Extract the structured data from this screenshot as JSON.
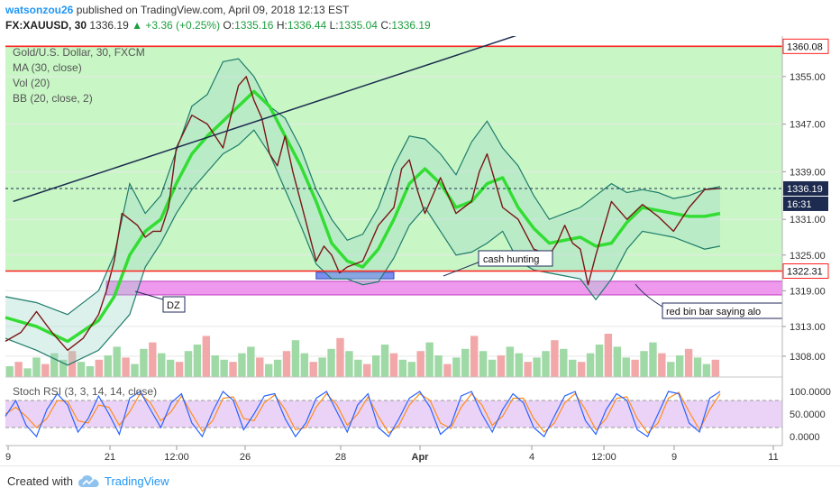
{
  "header": {
    "author": "watsonzou26",
    "published_text": "published on TradingView.com, April 09, 2018 12:13 EST",
    "symbol": "FX:XAUUSD, 30",
    "last": "1336.19",
    "change": "+3.36 (+0.25%)",
    "o_label": "O:",
    "o_value": "1335.16",
    "h_label": "H:",
    "h_value": "1336.44",
    "l_label": "L:",
    "l_value": "1335.04",
    "c_label": "C:",
    "c_value": "1336.19"
  },
  "legend": {
    "title": "Gold/U.S. Dollar, 30, FXCM",
    "ma": "MA (30, close)",
    "vol": "Vol (20)",
    "bb": "BB (20, close, 2)",
    "stoch": "Stoch RSI (3, 3, 14, 14, close)"
  },
  "annotations": {
    "cash_hunting": "cash hunting",
    "dz": "DZ",
    "red_bin": "red bin bar saying alo"
  },
  "price_tags": {
    "resistance": "1360.08",
    "current": "1336.19",
    "countdown": "16:31",
    "support": "1322.31"
  },
  "footer": {
    "created_with": "Created with",
    "brand": "TradingView"
  },
  "colors": {
    "green_zone": "#c8f7c5",
    "demand_zone": "#ee99ee",
    "cash_box": "#7b8ef0",
    "level_line": "#ff2020",
    "ma": "#33dd33",
    "bb": "#1e7b6b",
    "price": "#7a1616",
    "stoch_k": "#2962ff",
    "stoch_d": "#ff8c1a",
    "stoch_band": "#e6c8f5",
    "currency_up": "#1c9e3e"
  },
  "chart_data": {
    "type": "candlestick",
    "title": "Gold/U.S. Dollar, 30, FXCM",
    "y_axis": {
      "ticks": [
        "1355.00",
        "1347.00",
        "1339.00",
        "1331.00",
        "1325.00",
        "1319.00",
        "1313.00",
        "1308.00"
      ],
      "tick_values": [
        1355,
        1347,
        1339,
        1331,
        1325,
        1319,
        1313,
        1308
      ],
      "range": [
        1304.5,
        1361.8
      ]
    },
    "x_axis": {
      "ticks": [
        "9",
        "21",
        "12:00",
        "26",
        "28",
        "Apr",
        "4",
        "12:00",
        "9",
        "11"
      ]
    },
    "horizontal_levels": [
      {
        "value": 1360.08,
        "color": "red"
      },
      {
        "value": 1322.31,
        "color": "red"
      },
      {
        "value": 1336.19,
        "color": "navy",
        "style": "dashed"
      }
    ],
    "trendline": {
      "from": [
        1,
        1334.0
      ],
      "to": [
        66,
        1362.0
      ]
    },
    "demand_zone": {
      "from_x": 13,
      "to_x": 100,
      "top": 1320.6,
      "bottom": 1318.3
    },
    "cash_box": {
      "from_x": 40,
      "to_x": 50,
      "top": 1322.1,
      "bottom": 1321.0
    },
    "price_path": {
      "x": [
        0,
        2,
        4,
        6,
        8,
        10,
        12,
        13,
        14,
        15,
        16,
        17,
        18,
        19,
        20,
        21,
        22,
        24,
        26,
        28,
        30,
        31,
        32,
        33,
        34,
        35,
        36,
        37,
        38,
        39,
        40,
        41,
        42,
        43,
        44,
        46,
        48,
        50,
        51,
        52,
        53,
        54,
        56,
        58,
        60,
        61,
        62,
        64,
        66,
        68,
        70,
        71,
        72,
        73,
        74,
        75,
        76,
        78,
        80,
        82,
        84,
        86,
        88,
        90,
        92
      ],
      "close": [
        1310.5,
        1312.0,
        1315.5,
        1312.0,
        1309.0,
        1311.0,
        1315.0,
        1319.0,
        1324.0,
        1332.0,
        1331.0,
        1330.0,
        1328.0,
        1329.0,
        1329.0,
        1333.0,
        1343.0,
        1348.5,
        1347.0,
        1343.0,
        1353.5,
        1355.0,
        1351.0,
        1348.0,
        1342.0,
        1340.0,
        1345.0,
        1339.0,
        1334.0,
        1329.0,
        1324.0,
        1326.5,
        1325.0,
        1322.0,
        1323.0,
        1324.0,
        1330.0,
        1333.0,
        1339.5,
        1341.0,
        1336.0,
        1332.0,
        1338.0,
        1332.0,
        1334.0,
        1339.0,
        1342.0,
        1333.0,
        1331.0,
        1326.0,
        1325.0,
        1327.0,
        1330.0,
        1327.0,
        1326.0,
        1320.0,
        1325.0,
        1334.0,
        1331.0,
        1333.5,
        1331.5,
        1329.0,
        1333.0,
        1336.0,
        1336.19
      ]
    },
    "ma30": {
      "x": [
        0,
        4,
        8,
        12,
        14,
        16,
        18,
        20,
        22,
        24,
        26,
        28,
        30,
        32,
        34,
        36,
        38,
        40,
        42,
        44,
        46,
        48,
        50,
        52,
        54,
        56,
        58,
        60,
        62,
        64,
        66,
        68,
        70,
        72,
        74,
        76,
        78,
        80,
        82,
        84,
        86,
        88,
        90,
        92
      ],
      "y": [
        1314.5,
        1313.0,
        1310.5,
        1314.0,
        1318.0,
        1325.0,
        1329.0,
        1331.0,
        1337.0,
        1342.0,
        1345.0,
        1347.5,
        1350.0,
        1352.5,
        1350.0,
        1345.0,
        1340.0,
        1334.0,
        1327.0,
        1324.0,
        1323.0,
        1326.0,
        1331.0,
        1337.0,
        1339.5,
        1337.0,
        1333.0,
        1334.0,
        1337.0,
        1338.0,
        1333.0,
        1329.5,
        1327.0,
        1327.5,
        1328.0,
        1326.5,
        1327.0,
        1330.5,
        1333.0,
        1332.5,
        1332.0,
        1331.5,
        1331.5,
        1332.0
      ]
    },
    "bb_upper": {
      "x": [
        0,
        4,
        8,
        12,
        14,
        16,
        18,
        20,
        22,
        24,
        26,
        28,
        30,
        32,
        34,
        36,
        38,
        40,
        42,
        44,
        46,
        48,
        50,
        52,
        54,
        56,
        58,
        60,
        62,
        64,
        66,
        68,
        70,
        72,
        74,
        76,
        78,
        80,
        82,
        84,
        86,
        88,
        90,
        92
      ],
      "y": [
        1318.0,
        1317.0,
        1315.0,
        1319.0,
        1325.0,
        1337.0,
        1332.0,
        1335.0,
        1342.5,
        1350.0,
        1352.0,
        1357.5,
        1358.0,
        1355.0,
        1350.0,
        1348.0,
        1343.0,
        1336.0,
        1331.0,
        1327.5,
        1328.5,
        1333.0,
        1340.0,
        1345.0,
        1344.5,
        1342.0,
        1338.5,
        1344.0,
        1347.5,
        1343.0,
        1340.0,
        1335.0,
        1331.0,
        1332.0,
        1333.0,
        1335.0,
        1337.0,
        1335.5,
        1336.0,
        1335.5,
        1334.5,
        1335.0,
        1336.0,
        1336.5
      ]
    },
    "bb_lower": {
      "x": [
        0,
        4,
        8,
        12,
        14,
        16,
        18,
        20,
        22,
        24,
        26,
        28,
        30,
        32,
        34,
        36,
        38,
        40,
        42,
        44,
        46,
        48,
        50,
        52,
        54,
        56,
        58,
        60,
        62,
        64,
        66,
        68,
        70,
        72,
        74,
        76,
        78,
        80,
        82,
        84,
        86,
        88,
        90,
        92
      ],
      "y": [
        1311.0,
        1309.0,
        1306.5,
        1309.0,
        1312.0,
        1315.0,
        1323.0,
        1327.0,
        1332.0,
        1336.0,
        1339.0,
        1342.0,
        1343.5,
        1346.0,
        1342.0,
        1336.0,
        1330.0,
        1323.5,
        1321.0,
        1321.0,
        1320.0,
        1320.5,
        1324.5,
        1330.0,
        1333.0,
        1329.0,
        1325.0,
        1325.5,
        1327.0,
        1329.0,
        1324.0,
        1322.5,
        1322.0,
        1321.5,
        1321.0,
        1317.5,
        1321.0,
        1326.0,
        1329.0,
        1328.5,
        1328.0,
        1327.0,
        1326.0,
        1326.5
      ]
    },
    "stoch_rsi": {
      "ticks": [
        "100.0000",
        "50.0000",
        "0.0000"
      ],
      "tick_values": [
        100,
        50,
        0
      ],
      "band": [
        20,
        80
      ],
      "k": [
        45,
        80,
        25,
        0,
        60,
        95,
        70,
        10,
        40,
        90,
        50,
        5,
        85,
        100,
        60,
        20,
        75,
        95,
        30,
        0,
        55,
        100,
        80,
        15,
        50,
        90,
        95,
        40,
        0,
        30,
        85,
        100,
        55,
        10,
        70,
        95,
        20,
        0,
        40,
        85,
        100,
        65,
        5,
        25,
        90,
        100,
        50,
        10,
        60,
        95,
        75,
        20,
        0,
        45,
        90,
        100,
        35,
        5,
        60,
        95,
        80,
        15,
        0,
        50,
        100,
        95,
        30,
        10,
        85,
        100
      ],
      "d": [
        50,
        65,
        45,
        20,
        40,
        80,
        78,
        35,
        30,
        70,
        65,
        25,
        55,
        95,
        75,
        35,
        55,
        90,
        50,
        12,
        35,
        85,
        88,
        40,
        35,
        75,
        92,
        60,
        15,
        20,
        65,
        95,
        70,
        25,
        50,
        88,
        45,
        8,
        25,
        70,
        95,
        80,
        30,
        18,
        65,
        95,
        70,
        25,
        45,
        85,
        85,
        40,
        10,
        30,
        75,
        95,
        60,
        15,
        40,
        85,
        88,
        40,
        8,
        30,
        85,
        98,
        55,
        15,
        60,
        95
      ]
    },
    "volume": {
      "max": 100,
      "values": [
        25,
        35,
        20,
        45,
        30,
        55,
        40,
        60,
        35,
        25,
        40,
        50,
        70,
        45,
        30,
        65,
        80,
        55,
        40,
        35,
        60,
        75,
        95,
        50,
        40,
        35,
        55,
        70,
        45,
        30,
        40,
        60,
        85,
        55,
        35,
        45,
        65,
        90,
        60,
        40,
        30,
        50,
        75,
        55,
        40,
        35,
        60,
        80,
        50,
        30,
        45,
        65,
        95,
        60,
        40,
        50,
        70,
        55,
        35,
        45,
        60,
        85,
        65,
        40,
        35,
        55,
        75,
        100,
        70,
        45,
        40,
        60,
        80,
        55,
        35,
        50,
        65,
        45,
        30,
        40
      ]
    }
  }
}
